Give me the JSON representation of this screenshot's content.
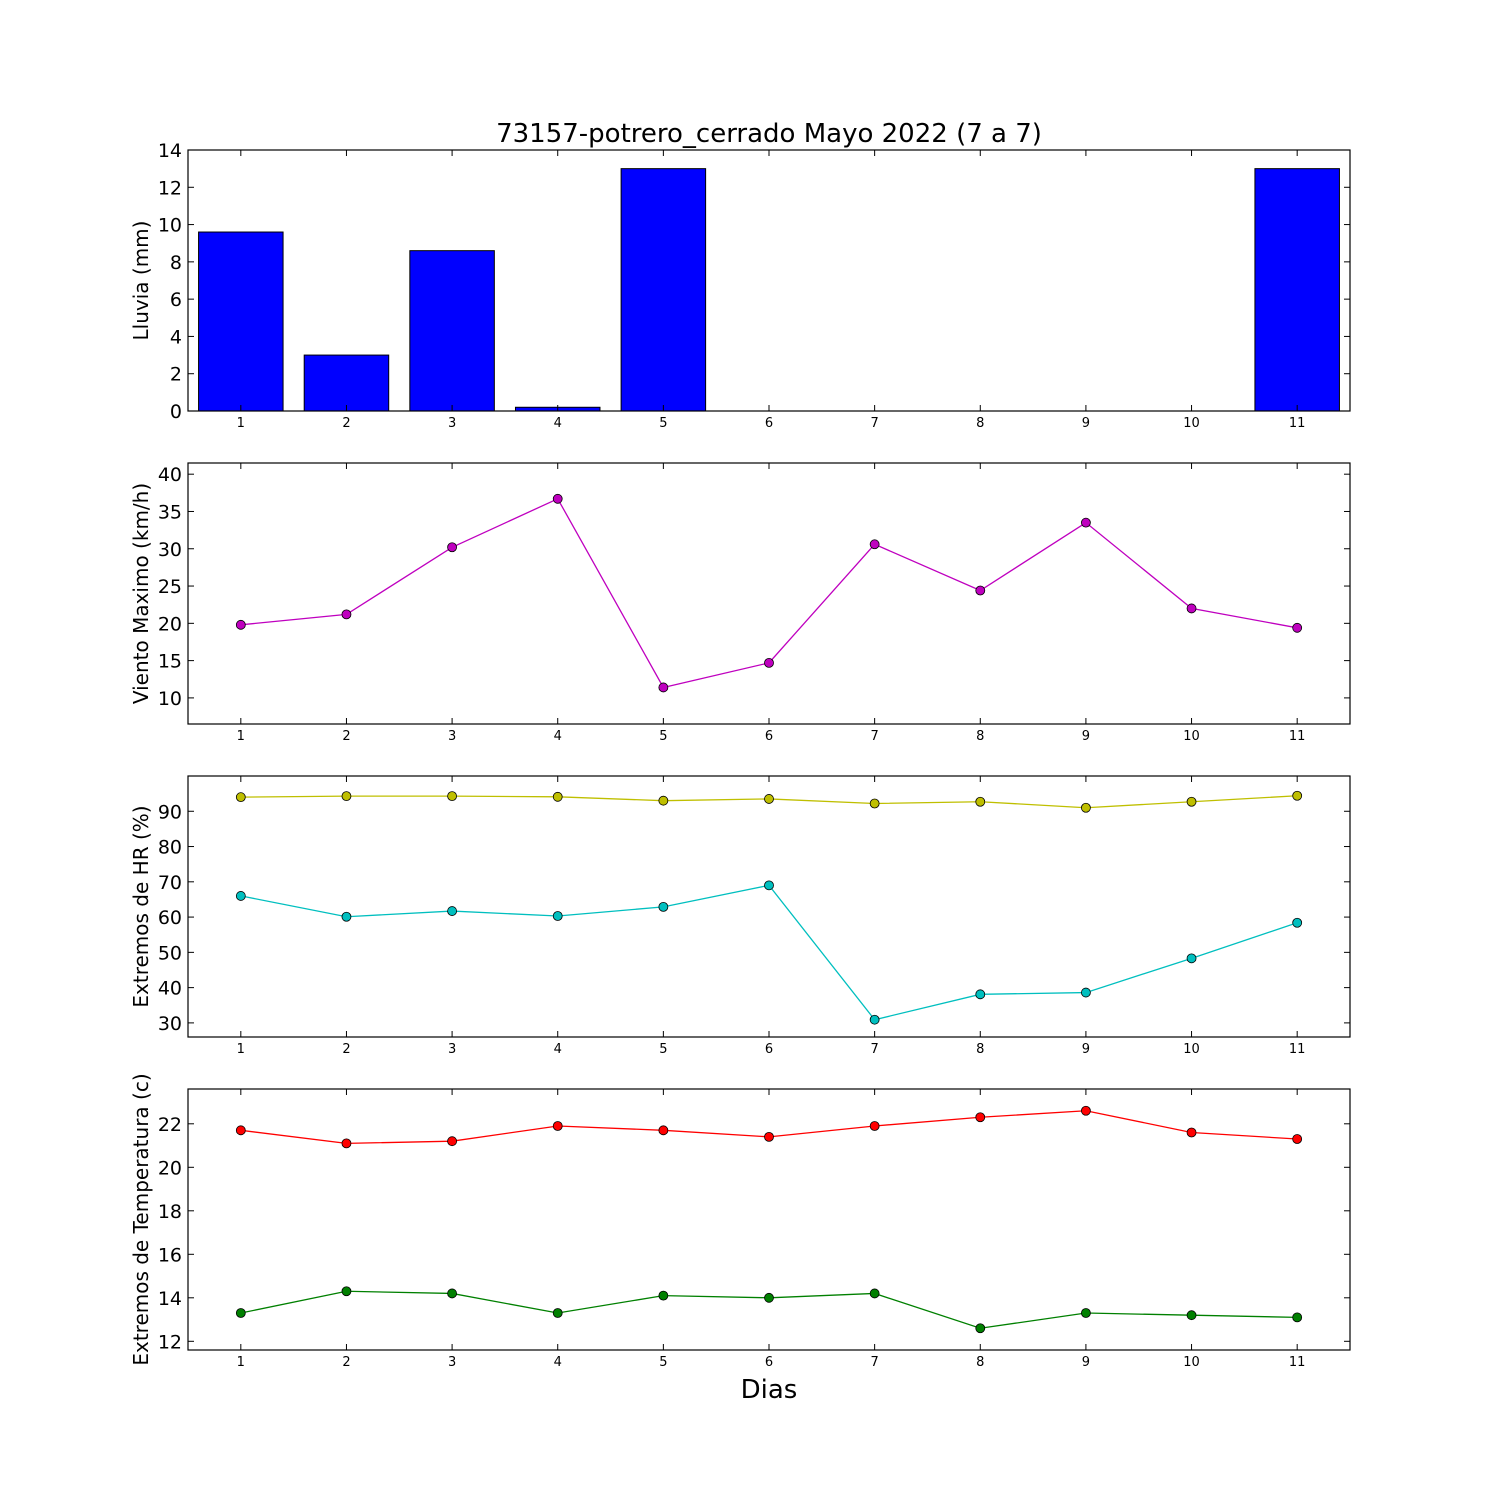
{
  "figure": {
    "title": "73157-potrero_cerrado Mayo 2022  (7 a 7)",
    "xlabel": "Dias"
  },
  "chart_data": [
    {
      "type": "bar",
      "ylabel": "Lluvia (mm)",
      "categories": [
        1,
        2,
        3,
        4,
        5,
        6,
        7,
        8,
        9,
        10,
        11
      ],
      "values": [
        9.6,
        3.0,
        8.6,
        0.2,
        13.0,
        0,
        0,
        0,
        0,
        0,
        13.0
      ],
      "ylim": [
        0,
        14
      ],
      "yticks": [
        0,
        2,
        4,
        6,
        8,
        10,
        12,
        14
      ],
      "xlim": [
        0.5,
        11.5
      ],
      "color": "#0000ff"
    },
    {
      "type": "line",
      "ylabel": "Viento Maximo (km/h)",
      "x": [
        1,
        2,
        3,
        4,
        5,
        6,
        7,
        8,
        9,
        10,
        11
      ],
      "series": [
        {
          "values": [
            19.8,
            21.2,
            30.2,
            36.7,
            11.4,
            14.7,
            30.6,
            24.4,
            33.5,
            22.0,
            19.4
          ],
          "color": "#bf00bf"
        }
      ],
      "ylim": [
        6.5,
        41.5
      ],
      "yticks": [
        10,
        15,
        20,
        25,
        30,
        35,
        40
      ],
      "xlim": [
        0.5,
        11.5
      ]
    },
    {
      "type": "line",
      "ylabel": "Extremos de HR (%)",
      "x": [
        1,
        2,
        3,
        4,
        5,
        6,
        7,
        8,
        9,
        10,
        11
      ],
      "series": [
        {
          "values": [
            94.0,
            94.3,
            94.3,
            94.1,
            93.0,
            93.5,
            92.2,
            92.7,
            91.0,
            92.7,
            94.4
          ],
          "color": "#bfbf00"
        },
        {
          "values": [
            66.0,
            60.1,
            61.7,
            60.3,
            62.9,
            69.0,
            30.9,
            38.1,
            38.6,
            48.3,
            58.4
          ],
          "color": "#00bfbf"
        }
      ],
      "ylim": [
        26,
        100
      ],
      "yticks": [
        30,
        40,
        50,
        60,
        70,
        80,
        90
      ],
      "xlim": [
        0.5,
        11.5
      ]
    },
    {
      "type": "line",
      "ylabel": "Extremos de Temperatura (c)",
      "x": [
        1,
        2,
        3,
        4,
        5,
        6,
        7,
        8,
        9,
        10,
        11
      ],
      "series": [
        {
          "values": [
            21.7,
            21.1,
            21.2,
            21.9,
            21.7,
            21.4,
            21.9,
            22.3,
            22.6,
            21.6,
            21.3
          ],
          "color": "#ff0000"
        },
        {
          "values": [
            13.3,
            14.3,
            14.2,
            13.3,
            14.1,
            14.0,
            14.2,
            12.6,
            13.3,
            13.2,
            13.1
          ],
          "color": "#008000"
        }
      ],
      "ylim": [
        11.6,
        23.6
      ],
      "yticks": [
        12,
        14,
        16,
        18,
        20,
        22
      ],
      "xlim": [
        0.5,
        11.5
      ]
    }
  ]
}
